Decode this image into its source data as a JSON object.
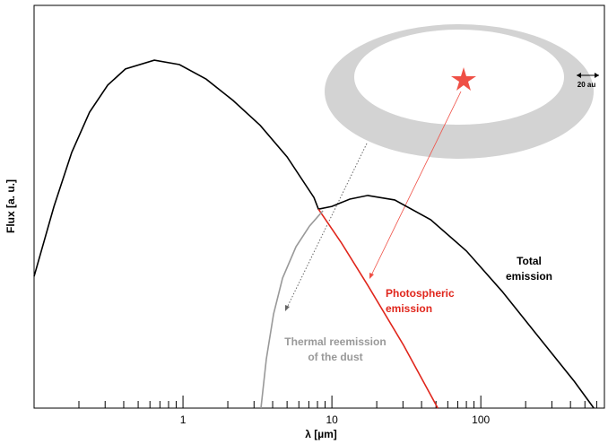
{
  "chart_data": {
    "type": "line",
    "xlabel": "λ [µm]",
    "ylabel": "Flux [a. u.]",
    "xscale": "log",
    "xlim": [
      0.1,
      676
    ],
    "ylim": [
      0,
      100
    ],
    "xticks": [
      1,
      10,
      100
    ],
    "xminorticks": [
      0.2,
      0.3,
      0.4,
      0.5,
      0.6,
      0.7,
      0.8,
      0.9,
      2,
      3,
      4,
      5,
      6,
      7,
      8,
      9,
      20,
      30,
      40,
      50,
      60,
      70,
      80,
      90,
      200,
      300,
      400,
      500,
      600
    ],
    "series": [
      {
        "name": "Total emission",
        "color": "#000000",
        "width": 1.6,
        "x": [
          0.1,
          0.136,
          0.179,
          0.236,
          0.312,
          0.411,
          0.642,
          0.946,
          1.43,
          2.17,
          3.3,
          5.0,
          7.58,
          8.12,
          10,
          13.2,
          17.4,
          26.4,
          46.0,
          80.1,
          139,
          243,
          423,
          574
        ],
        "values": [
          32.7,
          50.1,
          63.5,
          73.5,
          80.2,
          84.2,
          86.4,
          85.3,
          81.7,
          76.4,
          70.2,
          62.4,
          52.3,
          49.4,
          50.1,
          51.9,
          52.8,
          51.7,
          46.8,
          39.0,
          29.0,
          17.8,
          6.7,
          0
        ]
      },
      {
        "name": "Photospheric emission",
        "color": "#e0261c",
        "width": 1.6,
        "x": [
          8.12,
          11.5,
          17.4,
          30.3,
          51.4
        ],
        "values": [
          49.4,
          41.2,
          30.5,
          15.6,
          0
        ]
      },
      {
        "name": "Thermal reemission of the dust",
        "color": "#999999",
        "width": 1.6,
        "x": [
          3.34,
          3.63,
          4.06,
          4.66,
          5.74,
          7.07,
          8.7
        ],
        "values": [
          0,
          12.2,
          23.4,
          32.3,
          40.1,
          45.2,
          49.0
        ]
      }
    ],
    "annotations": [
      {
        "lines": [
          "Total",
          "emission"
        ],
        "color": "#000000"
      },
      {
        "lines": [
          "Photospheric",
          "emission"
        ],
        "color": "#e0261c"
      },
      {
        "lines": [
          "Thermal reemission",
          "of the dust"
        ],
        "color": "#999999"
      },
      {
        "lines": [
          "20 au"
        ],
        "color": "#000000"
      }
    ]
  }
}
